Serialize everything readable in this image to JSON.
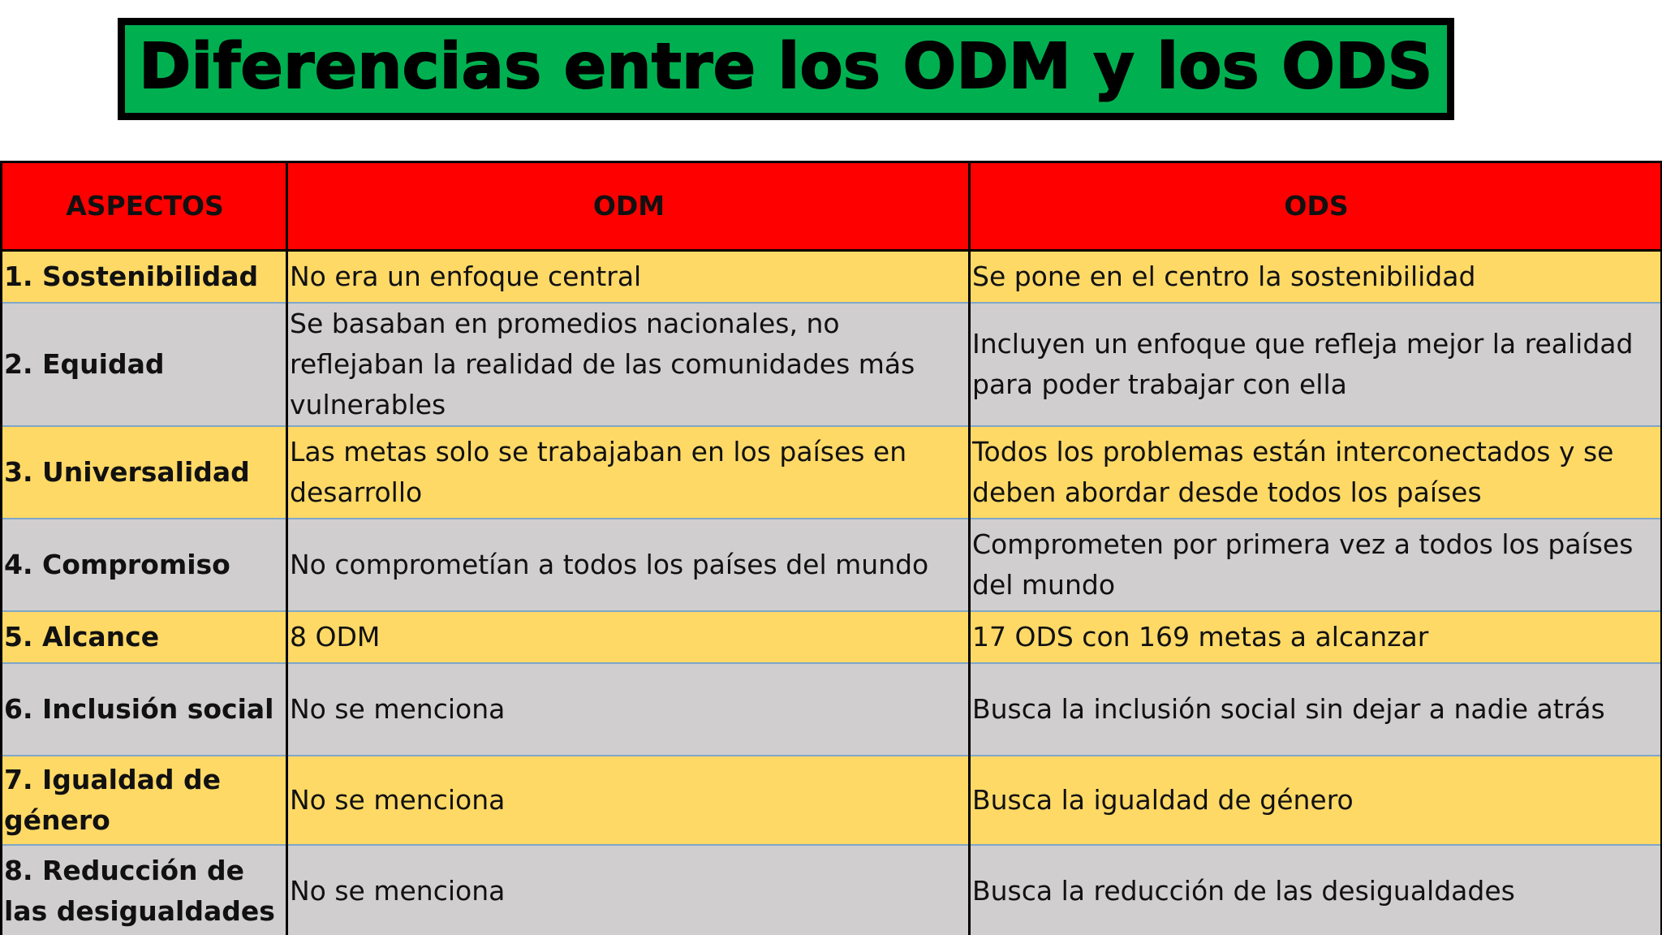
{
  "title": "Diferencias entre los ODM y los ODS",
  "colors": {
    "title_background": "#00b050",
    "header_background": "#ff0000",
    "row_yellow": "#ffd966",
    "row_gray": "#d0cece"
  },
  "table": {
    "headers": [
      "ASPECTOS",
      "ODM",
      "ODS"
    ],
    "rows": [
      {
        "aspect": "1. Sostenibilidad",
        "odm": "No era un enfoque central",
        "ods": "Se pone en el centro la sostenibilidad"
      },
      {
        "aspect": "2. Equidad",
        "odm": "Se basaban en promedios nacionales, no reflejaban la realidad de las comunidades más vulnerables",
        "ods": "Incluyen un enfoque que refleja mejor la realidad para poder trabajar con ella"
      },
      {
        "aspect": "3. Universalidad",
        "odm": "Las metas solo se trabajaban en los países en desarrollo",
        "ods": "Todos los problemas están interconectados y se deben abordar desde todos los países"
      },
      {
        "aspect": "4. Compromiso",
        "odm": "No comprometían a todos los países del mundo",
        "ods": "Comprometen por primera vez a todos los países del mundo"
      },
      {
        "aspect": "5. Alcance",
        "odm": "8 ODM",
        "ods": "17 ODS con 169 metas a alcanzar"
      },
      {
        "aspect": "6. Inclusión social",
        "odm": "No se menciona",
        "ods": "Busca la inclusión social sin dejar a nadie atrás"
      },
      {
        "aspect": "7. Igualdad de género",
        "odm": "No se menciona",
        "ods": "Busca la igualdad de género"
      },
      {
        "aspect": "8. Reducción de las desigualdades",
        "odm": "No se menciona",
        "ods": "Busca la reducción de las desigualdades"
      }
    ]
  }
}
